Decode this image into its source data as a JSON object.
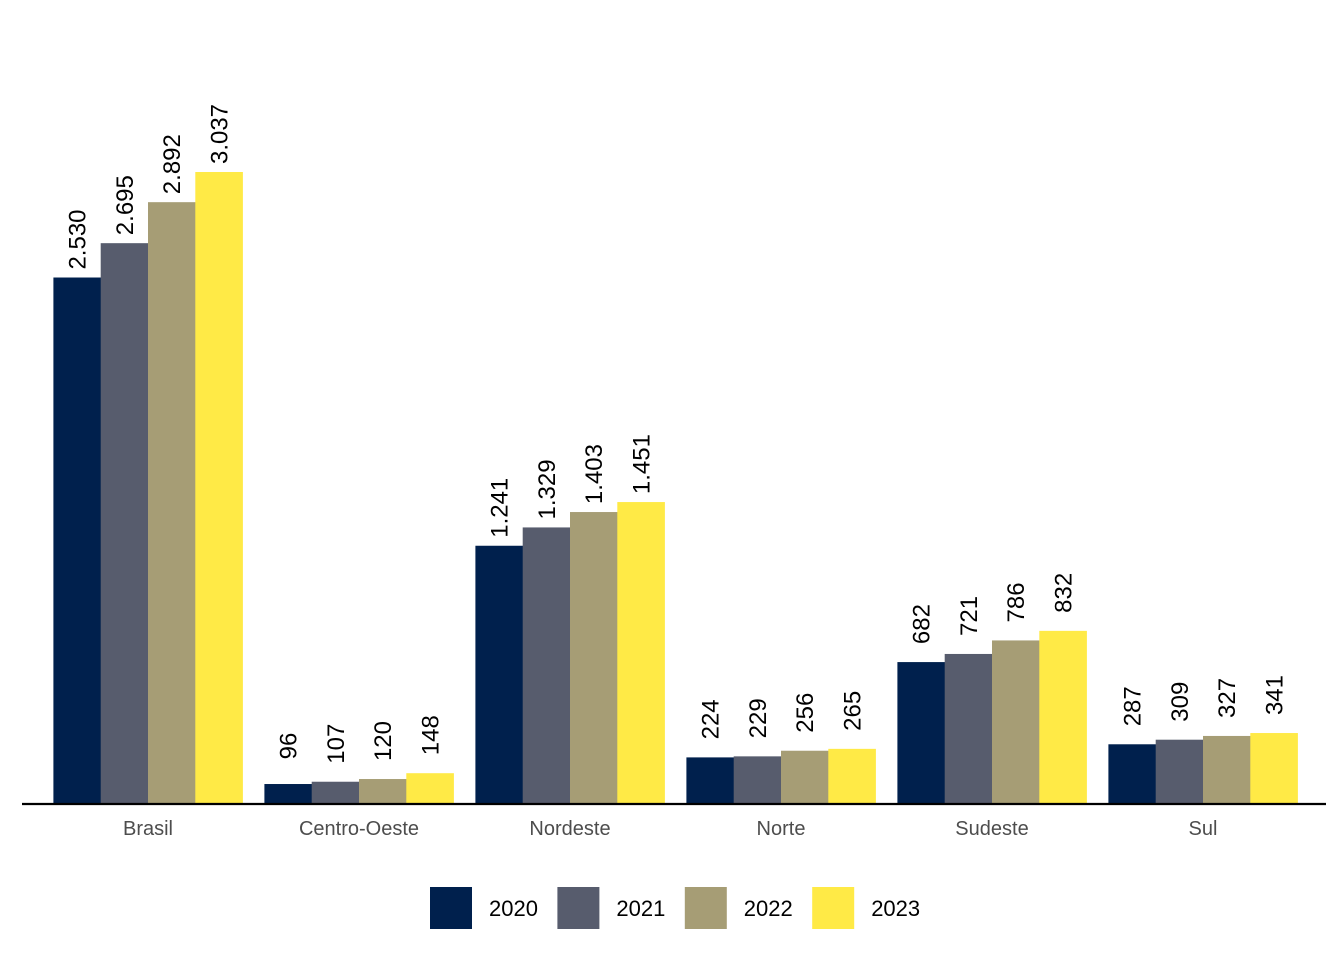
{
  "chart_data": {
    "type": "bar",
    "title": "",
    "xlabel": "",
    "ylabel": "",
    "ylim": [
      0,
      3037
    ],
    "grid": false,
    "legend_position": "bottom",
    "categories": [
      "Brasil",
      "Centro-Oeste",
      "Nordeste",
      "Norte",
      "Sudeste",
      "Sul"
    ],
    "series": [
      {
        "name": "2020",
        "color": "#00204D",
        "values": [
          2530,
          96,
          1241,
          224,
          682,
          287
        ],
        "labels": [
          "2.530",
          "96",
          "1.241",
          "224",
          "682",
          "287"
        ]
      },
      {
        "name": "2021",
        "color": "#575C6D",
        "values": [
          2695,
          107,
          1329,
          229,
          721,
          309
        ],
        "labels": [
          "2.695",
          "107",
          "1.329",
          "229",
          "721",
          "309"
        ]
      },
      {
        "name": "2022",
        "color": "#A69D75",
        "values": [
          2892,
          120,
          1403,
          256,
          786,
          327
        ],
        "labels": [
          "2.892",
          "120",
          "1.403",
          "256",
          "786",
          "327"
        ]
      },
      {
        "name": "2023",
        "color": "#FFEA46",
        "values": [
          3037,
          148,
          1451,
          265,
          832,
          341
        ],
        "labels": [
          "3.037",
          "148",
          "1.451",
          "265",
          "832",
          "341"
        ]
      }
    ]
  }
}
